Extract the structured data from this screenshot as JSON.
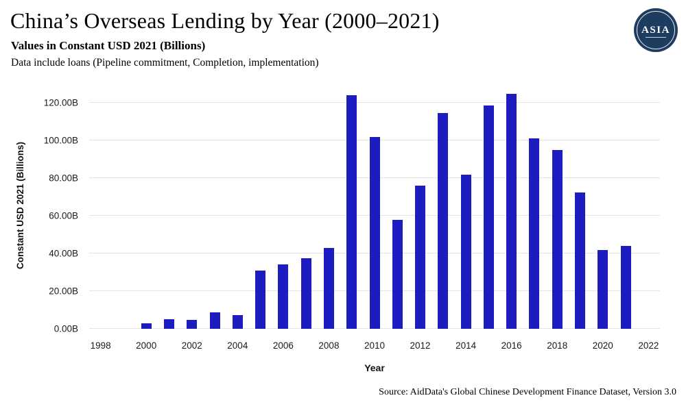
{
  "header": {
    "title": "China’s Overseas Lending by Year (2000–2021)",
    "subtitle": "Values in Constant USD 2021 (Billions)",
    "note": "Data include loans (Pipeline commitment, Completion, implementation)",
    "logo_text": "ASIA",
    "logo_color": "#1e3c5f"
  },
  "footer": {
    "source": "Source: AidData's Global Chinese Development Finance Dataset, Version 3.0"
  },
  "chart_data": {
    "type": "bar",
    "title": "China’s Overseas Lending by Year (2000–2021)",
    "xlabel": "Year",
    "ylabel": "Constant USD 2021 (Billions)",
    "categories": [
      2000,
      2001,
      2002,
      2003,
      2004,
      2005,
      2006,
      2007,
      2008,
      2009,
      2010,
      2011,
      2012,
      2013,
      2014,
      2015,
      2016,
      2017,
      2018,
      2019,
      2020,
      2021
    ],
    "values": [
      2.8,
      5.2,
      4.8,
      8.8,
      7.2,
      30.8,
      34.2,
      37.5,
      43.0,
      124.0,
      102.0,
      58.0,
      76.0,
      114.8,
      81.8,
      118.5,
      125.0,
      101.0,
      95.0,
      72.5,
      41.8,
      44.0
    ],
    "x_ticks": [
      1998,
      2000,
      2002,
      2004,
      2006,
      2008,
      2010,
      2012,
      2014,
      2016,
      2018,
      2020,
      2022
    ],
    "x_domain": [
      1997.5,
      2022.5
    ],
    "y_ticks": [
      0,
      20,
      40,
      60,
      80,
      100,
      120
    ],
    "y_tick_labels": [
      "0.00B",
      "20.00B",
      "40.00B",
      "60.00B",
      "80.00B",
      "100.00B",
      "120.00B"
    ],
    "ylim": [
      0,
      131
    ],
    "bar_color": "#1c1cc0",
    "grid": "horizontal",
    "legend": "none"
  }
}
